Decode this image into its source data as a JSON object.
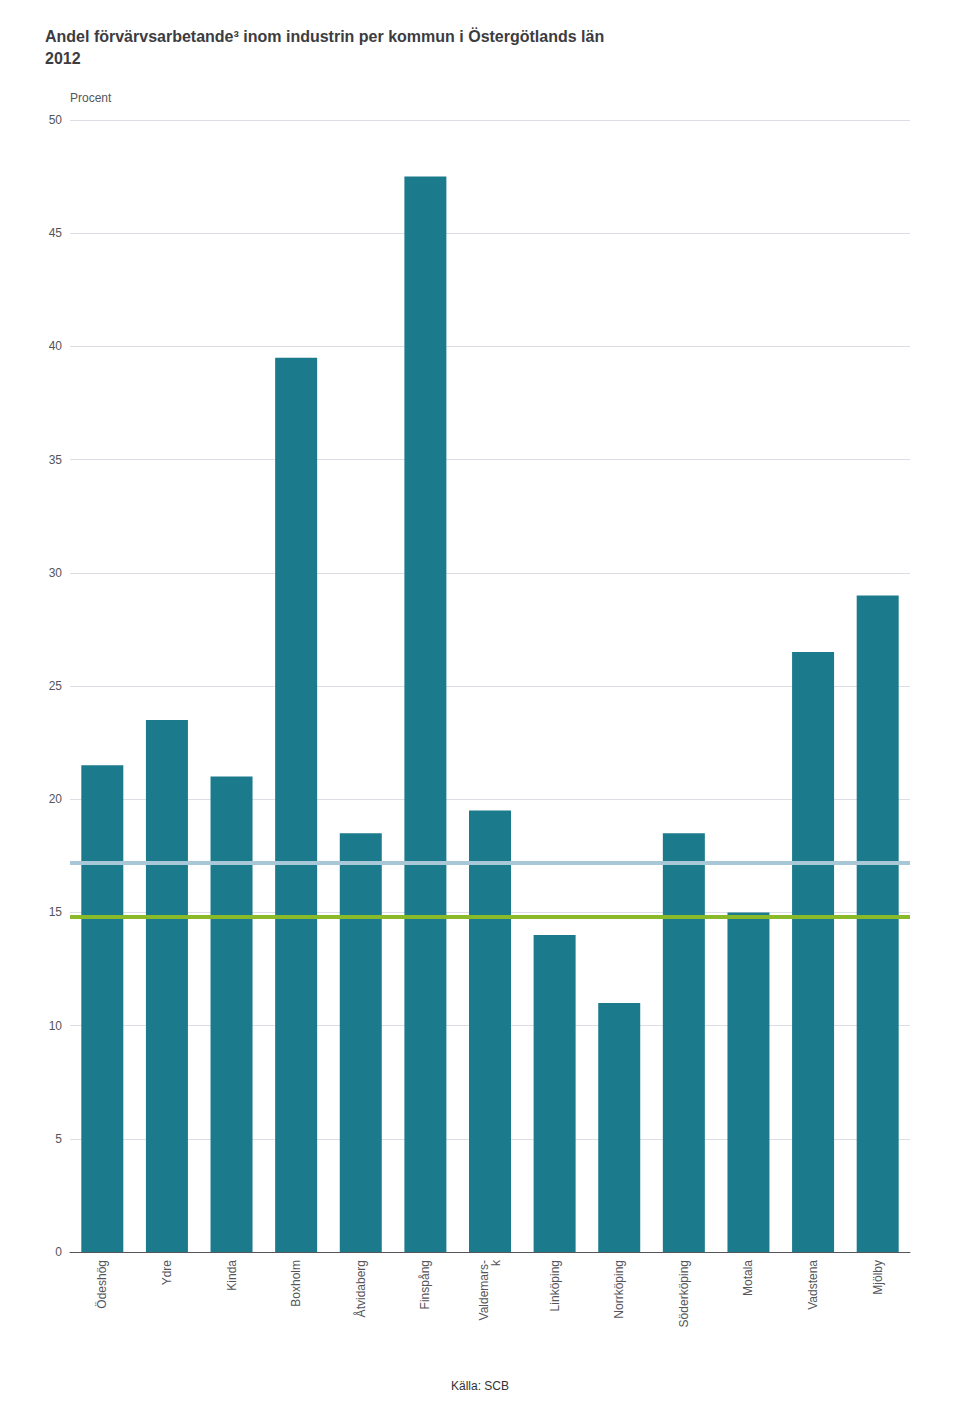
{
  "chart_data": {
    "type": "bar",
    "title": "Andel förvärvsarbetande³ inom industrin per kommun i Östergötlands län\n2012",
    "ylabel": "Procent",
    "annotations": [
      "Källa: SCB"
    ],
    "categories": [
      "Ödeshög",
      "Ydre",
      "Kinda",
      "Boxholm",
      "Åtvidaberg",
      "Finspång",
      "Valdemars-\nk",
      "Linköping",
      "Norrköping",
      "Söderköping",
      "Motala",
      "Vadstena",
      "Mjölby"
    ],
    "values": [
      21.5,
      23.5,
      21.0,
      39.5,
      18.5,
      47.5,
      19.5,
      14.0,
      11.0,
      18.5,
      15.0,
      26.5,
      29.0
    ],
    "color": "#1b7a8c",
    "hlines": [
      {
        "value": 17.2,
        "color": "#a8c8d8"
      },
      {
        "value": 14.8,
        "color": "#8aba2a"
      }
    ],
    "ylim": [
      0,
      50
    ],
    "yticks": [
      0,
      5,
      10,
      15,
      20,
      25,
      30,
      35,
      40,
      45,
      50
    ],
    "grid": true
  }
}
